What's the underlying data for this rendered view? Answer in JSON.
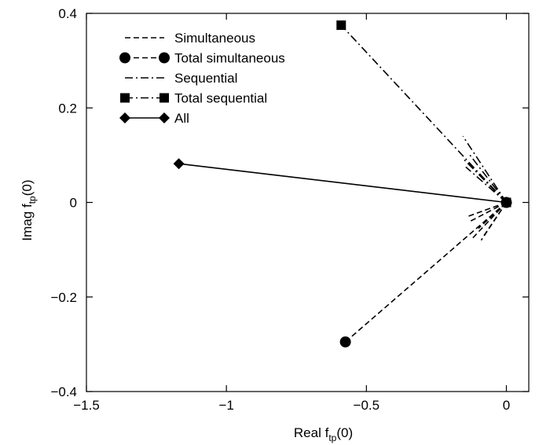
{
  "chart_data": {
    "type": "line",
    "xlabel": {
      "main": "Real f",
      "sub": "tp",
      "tail": "(0)"
    },
    "ylabel": {
      "main": "Imag f",
      "sub": "tp",
      "tail": "(0)"
    },
    "xlim": [
      -1.5,
      0.08
    ],
    "ylim": [
      -0.4,
      0.4
    ],
    "xticks": [
      -1.5,
      -1,
      -0.5,
      0
    ],
    "xtick_labels": [
      "−1.5",
      "−1",
      "−0.5",
      "0"
    ],
    "yticks": [
      -0.4,
      -0.2,
      0,
      0.2,
      0.4
    ],
    "ytick_labels": [
      "−0.4",
      "−0.2",
      "0",
      "0.2",
      "0.4"
    ],
    "grid": false,
    "legend_position": "top-left",
    "series": [
      {
        "name": "Simultaneous",
        "style": "dashed",
        "marker": "none",
        "segments": [
          [
            [
              0,
              0
            ],
            [
              -0.08,
              -0.07
            ]
          ],
          [
            [
              0,
              0
            ],
            [
              -0.1,
              -0.055
            ]
          ],
          [
            [
              0,
              0
            ],
            [
              -0.13,
              -0.04
            ]
          ],
          [
            [
              0,
              0
            ],
            [
              -0.14,
              -0.03
            ]
          ],
          [
            [
              0,
              0
            ],
            [
              -0.12,
              -0.075
            ]
          ],
          [
            [
              0,
              0
            ],
            [
              -0.09,
              -0.08
            ]
          ]
        ]
      },
      {
        "name": "Total simultaneous",
        "style": "dashed",
        "marker": "circle",
        "points": [
          [
            0,
            0
          ],
          [
            -0.575,
            -0.295
          ]
        ]
      },
      {
        "name": "Sequential",
        "style": "dashdot",
        "marker": "none",
        "segments": [
          [
            [
              0,
              0
            ],
            [
              -0.155,
              0.14
            ]
          ],
          [
            [
              0,
              0
            ],
            [
              -0.13,
              0.1
            ]
          ],
          [
            [
              0,
              0
            ],
            [
              -0.14,
              0.085
            ]
          ],
          [
            [
              0,
              0
            ],
            [
              -0.15,
              0.09
            ]
          ],
          [
            [
              0,
              0
            ],
            [
              -0.145,
              0.075
            ]
          ]
        ]
      },
      {
        "name": "Total sequential",
        "style": "dashdot",
        "marker": "square",
        "points": [
          [
            0,
            0
          ],
          [
            -0.59,
            0.375
          ]
        ]
      },
      {
        "name": "All",
        "style": "solid",
        "marker": "diamond",
        "points": [
          [
            0,
            0
          ],
          [
            -1.17,
            0.082
          ]
        ]
      }
    ]
  }
}
